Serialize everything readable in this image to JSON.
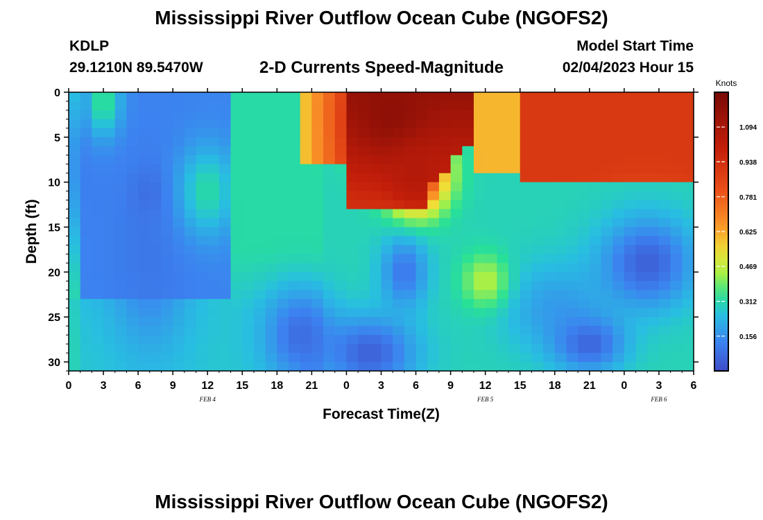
{
  "header": {
    "title": "Mississippi River Outflow Ocean Cube (NGOFS2)",
    "station": "KDLP",
    "coordinates": "29.1210N  89.5470W",
    "plot_title": "2-D Currents Speed-Magnitude",
    "model_start_label": "Model Start Time",
    "model_start_value": "02/04/2023 Hour 15"
  },
  "chart_data": {
    "type": "heatmap",
    "title": "2-D Currents Speed-Magnitude",
    "xlabel": "Forecast Time(Z)",
    "ylabel": "Depth (ft)",
    "x_tick_labels": [
      "0",
      "3",
      "6",
      "9",
      "12",
      "15",
      "18",
      "21",
      "0",
      "3",
      "6",
      "9",
      "12",
      "15",
      "18",
      "21",
      "0",
      "3",
      "6"
    ],
    "x_range_hours": [
      0,
      54
    ],
    "date_labels": [
      {
        "label": "FEB 4",
        "hour": 12
      },
      {
        "label": "FEB 5",
        "hour": 36
      },
      {
        "label": "FEB 6",
        "hour": 51
      }
    ],
    "y_ticks": [
      0,
      5,
      10,
      15,
      20,
      25,
      30
    ],
    "ylim": [
      0,
      31
    ],
    "y_inverted": true,
    "colorbar": {
      "title": "Knots",
      "ticks": [
        "1.094",
        "0.938",
        "0.781",
        "0.625",
        "0.469",
        "0.312",
        "0.156"
      ],
      "min": 0.0,
      "max": 1.25
    },
    "features": [
      {
        "hour": 7,
        "depth": 12,
        "speed": 0.0,
        "radius_h": 1.5,
        "radius_d": 3
      },
      {
        "hour": 7,
        "depth": 17,
        "speed": 0.1,
        "radius_h": 3.5,
        "radius_d": 11
      },
      {
        "hour": 2,
        "depth": 8,
        "speed": 0.12,
        "radius_h": 3,
        "radius_d": 10
      },
      {
        "hour": 3,
        "depth": 1,
        "speed": 0.35,
        "radius_h": 1.5,
        "radius_d": 4
      },
      {
        "hour": 12,
        "depth": 11,
        "speed": 0.32,
        "radius_h": 2.5,
        "radius_d": 5
      },
      {
        "hour": 20,
        "depth": 27,
        "speed": 0.08,
        "radius_h": 3,
        "radius_d": 5
      },
      {
        "hour": 26,
        "depth": 29,
        "speed": 0.05,
        "radius_h": 4,
        "radius_d": 4
      },
      {
        "hour": 29,
        "depth": 20,
        "speed": 0.1,
        "radius_h": 2,
        "radius_d": 4
      },
      {
        "hour": 42,
        "depth": 24,
        "speed": 0.18,
        "radius_h": 4.5,
        "radius_d": 5
      },
      {
        "hour": 50,
        "depth": 19,
        "speed": 0.05,
        "radius_h": 4,
        "radius_d": 5
      },
      {
        "hour": 45,
        "depth": 28,
        "speed": 0.06,
        "radius_h": 3,
        "radius_d": 3
      },
      {
        "hour": 36,
        "depth": 21,
        "speed": 0.45,
        "radius_h": 2,
        "radius_d": 3
      },
      {
        "hour": 28,
        "depth": 3,
        "speed": 1.18,
        "radius_h": 3,
        "radius_d": 4
      },
      {
        "hour": 30,
        "depth": 9,
        "speed": 1.05,
        "radius_h": 2.5,
        "radius_d": 4
      }
    ]
  }
}
